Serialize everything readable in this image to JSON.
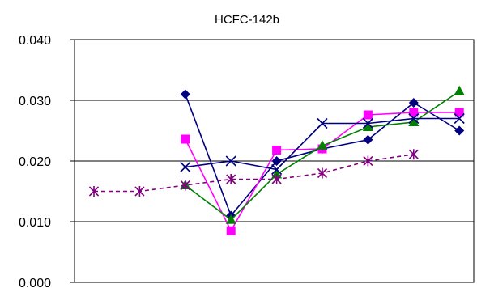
{
  "chart_data": {
    "type": "line",
    "title": "HCFC-142b",
    "xlabel": "",
    "ylabel": "",
    "ylim": [
      0.0,
      0.04
    ],
    "yticks": [
      "0.000",
      "0.010",
      "0.020",
      "0.030",
      "0.040"
    ],
    "ytick_values": [
      0.0,
      0.01,
      0.02,
      0.03,
      0.04
    ],
    "grid": true,
    "legend": "none",
    "x": [
      1,
      2,
      3,
      4,
      5,
      6,
      7,
      8,
      9
    ],
    "series": [
      {
        "color": "#000080",
        "marker": "diamond",
        "dashed": false,
        "values": [
          null,
          null,
          0.031,
          0.011,
          0.02,
          0.022,
          0.0235,
          0.0296,
          0.025
        ]
      },
      {
        "color": "#FF00FF",
        "marker": "square",
        "dashed": false,
        "values": [
          null,
          null,
          0.0236,
          0.0085,
          0.0218,
          0.022,
          0.0276,
          0.028,
          0.028
        ]
      },
      {
        "color": "#008000",
        "marker": "triangle",
        "dashed": false,
        "values": [
          null,
          null,
          0.016,
          0.0103,
          0.0178,
          0.0225,
          0.0256,
          0.0264,
          0.0315
        ]
      },
      {
        "color": "#000080",
        "marker": "x",
        "dashed": false,
        "values": [
          null,
          null,
          0.019,
          0.02,
          0.0186,
          0.0262,
          0.0262,
          0.027,
          0.027
        ]
      },
      {
        "color": "#800080",
        "marker": "asterisk",
        "dashed": true,
        "values": [
          0.015,
          0.015,
          0.016,
          0.017,
          0.017,
          0.018,
          0.02,
          0.0211,
          null
        ]
      }
    ]
  }
}
